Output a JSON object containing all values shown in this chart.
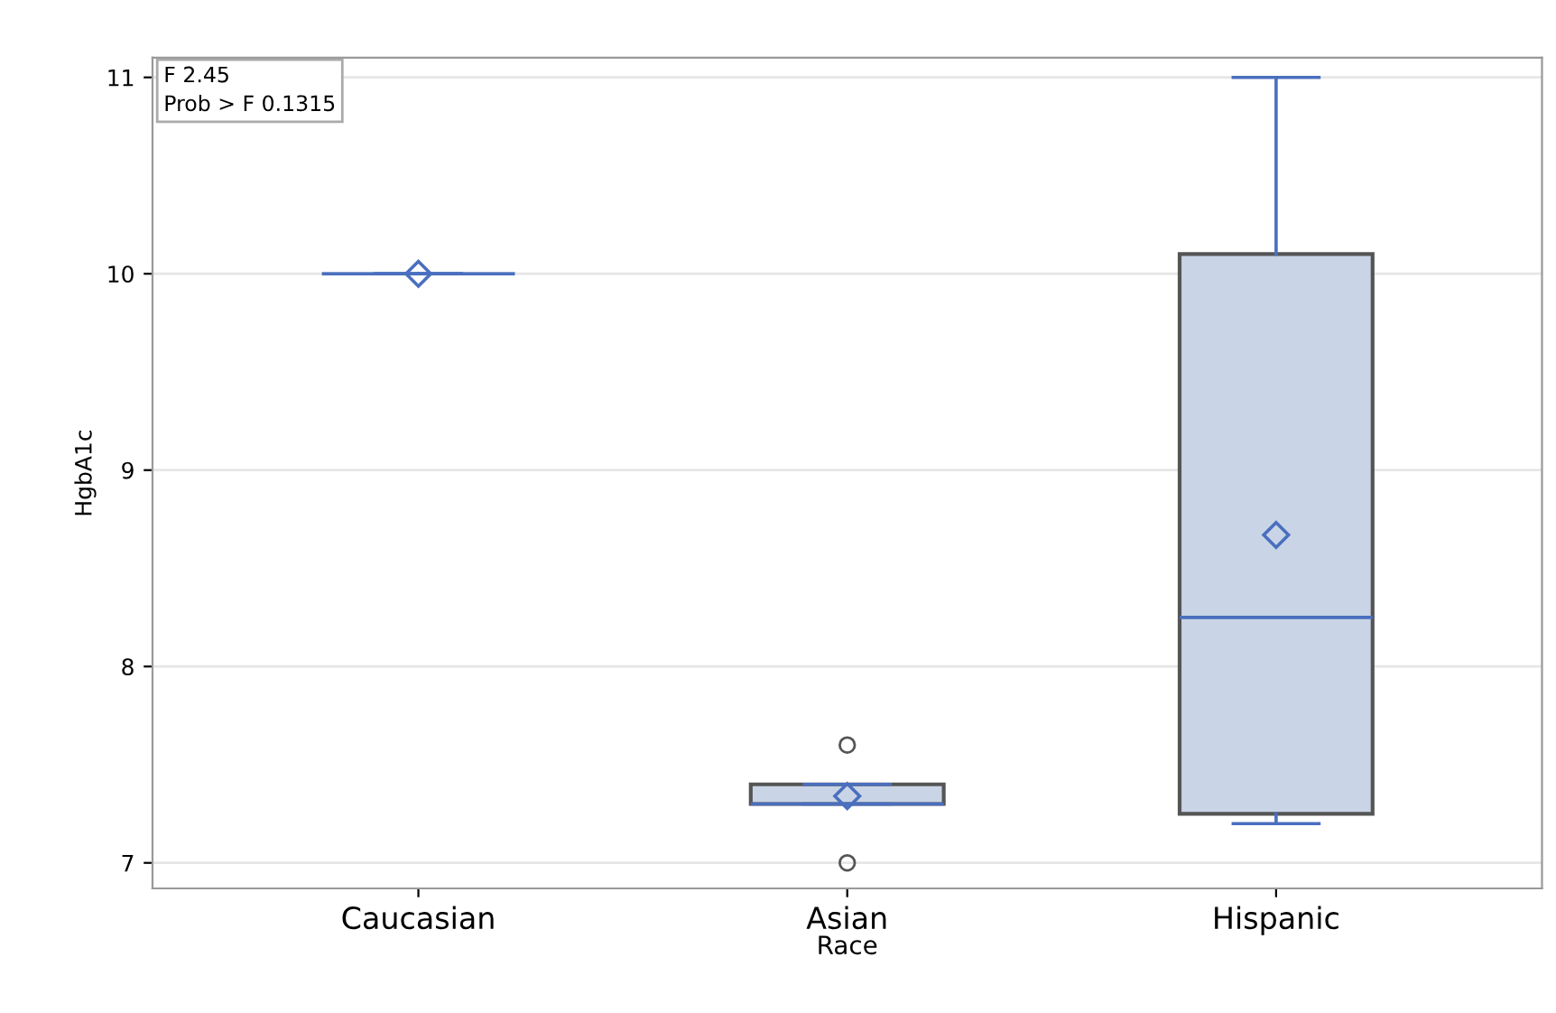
{
  "chart_data": {
    "type": "box",
    "xlabel": "Race",
    "ylabel": "HgbA1c",
    "categories": [
      "Caucasian",
      "Asian",
      "Hispanic"
    ],
    "boxes": [
      {
        "low": 10,
        "q1": 10,
        "median": 10,
        "q3": 10,
        "high": 10,
        "mean": 10
      },
      {
        "low": 7.3,
        "q1": 7.3,
        "median": 7.3,
        "q3": 7.4,
        "high": 7.4,
        "mean": 7.34,
        "outliers": [
          7.6,
          7.0
        ]
      },
      {
        "low": 7.2,
        "q1": 7.25,
        "median": 8.25,
        "q3": 10.1,
        "high": 11,
        "mean": 8.67
      }
    ],
    "color": "#c9d5e6",
    "ylim": [
      6.87,
      11.1
    ],
    "yticks": [
      7,
      8,
      9,
      10,
      11
    ],
    "grid": "y",
    "marker": "diamond",
    "annotations": [
      "F 2.45",
      "Prob > F 0.1315"
    ]
  }
}
